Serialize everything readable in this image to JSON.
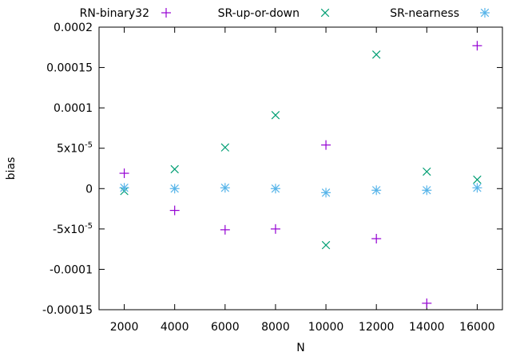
{
  "chart_data": {
    "type": "scatter",
    "xlabel": "N",
    "ylabel": "bias",
    "xlim": [
      1000,
      17000
    ],
    "ylim": [
      -0.00015,
      0.0002
    ],
    "x_ticks": [
      2000,
      4000,
      6000,
      8000,
      10000,
      12000,
      14000,
      16000
    ],
    "x_tick_labels": [
      "2000",
      "4000",
      "6000",
      "8000",
      "10000",
      "12000",
      "14000",
      "16000"
    ],
    "y_ticks": [
      0.0002,
      0.00015,
      0.0001,
      5e-05,
      0,
      -5e-05,
      -0.0001,
      -0.00015
    ],
    "y_tick_labels": [
      {
        "mantissa": "0.0002",
        "exp": ""
      },
      {
        "mantissa": "0.00015",
        "exp": ""
      },
      {
        "mantissa": "0.0001",
        "exp": ""
      },
      {
        "mantissa": "5x10",
        "exp": "-5"
      },
      {
        "mantissa": "0",
        "exp": ""
      },
      {
        "mantissa": "-5x10",
        "exp": "-5"
      },
      {
        "mantissa": "-0.0001",
        "exp": ""
      },
      {
        "mantissa": "-0.00015",
        "exp": ""
      }
    ],
    "grid": false,
    "legend_position": "top",
    "series": [
      {
        "name": "RN-binary32",
        "marker": "plus",
        "color": "#9400d3",
        "x": [
          2000,
          4000,
          6000,
          8000,
          10000,
          12000,
          14000,
          16000
        ],
        "y": [
          1.9e-05,
          -2.7e-05,
          -5.1e-05,
          -5e-05,
          5.4e-05,
          -6.2e-05,
          -0.000142,
          0.000177
        ]
      },
      {
        "name": "SR-up-or-down",
        "marker": "cross",
        "color": "#009e73",
        "x": [
          2000,
          4000,
          6000,
          8000,
          10000,
          12000,
          14000,
          16000
        ],
        "y": [
          -3e-06,
          2.4e-05,
          5.1e-05,
          9.1e-05,
          -7e-05,
          0.000166,
          2.1e-05,
          1.1e-05
        ]
      },
      {
        "name": "SR-nearness",
        "marker": "asterisk",
        "color": "#56b4e9",
        "x": [
          2000,
          4000,
          6000,
          8000,
          10000,
          12000,
          14000,
          16000
        ],
        "y": [
          1e-06,
          0.0,
          1e-06,
          0.0,
          -5e-06,
          -2e-06,
          -2e-06,
          1e-06
        ]
      }
    ]
  }
}
